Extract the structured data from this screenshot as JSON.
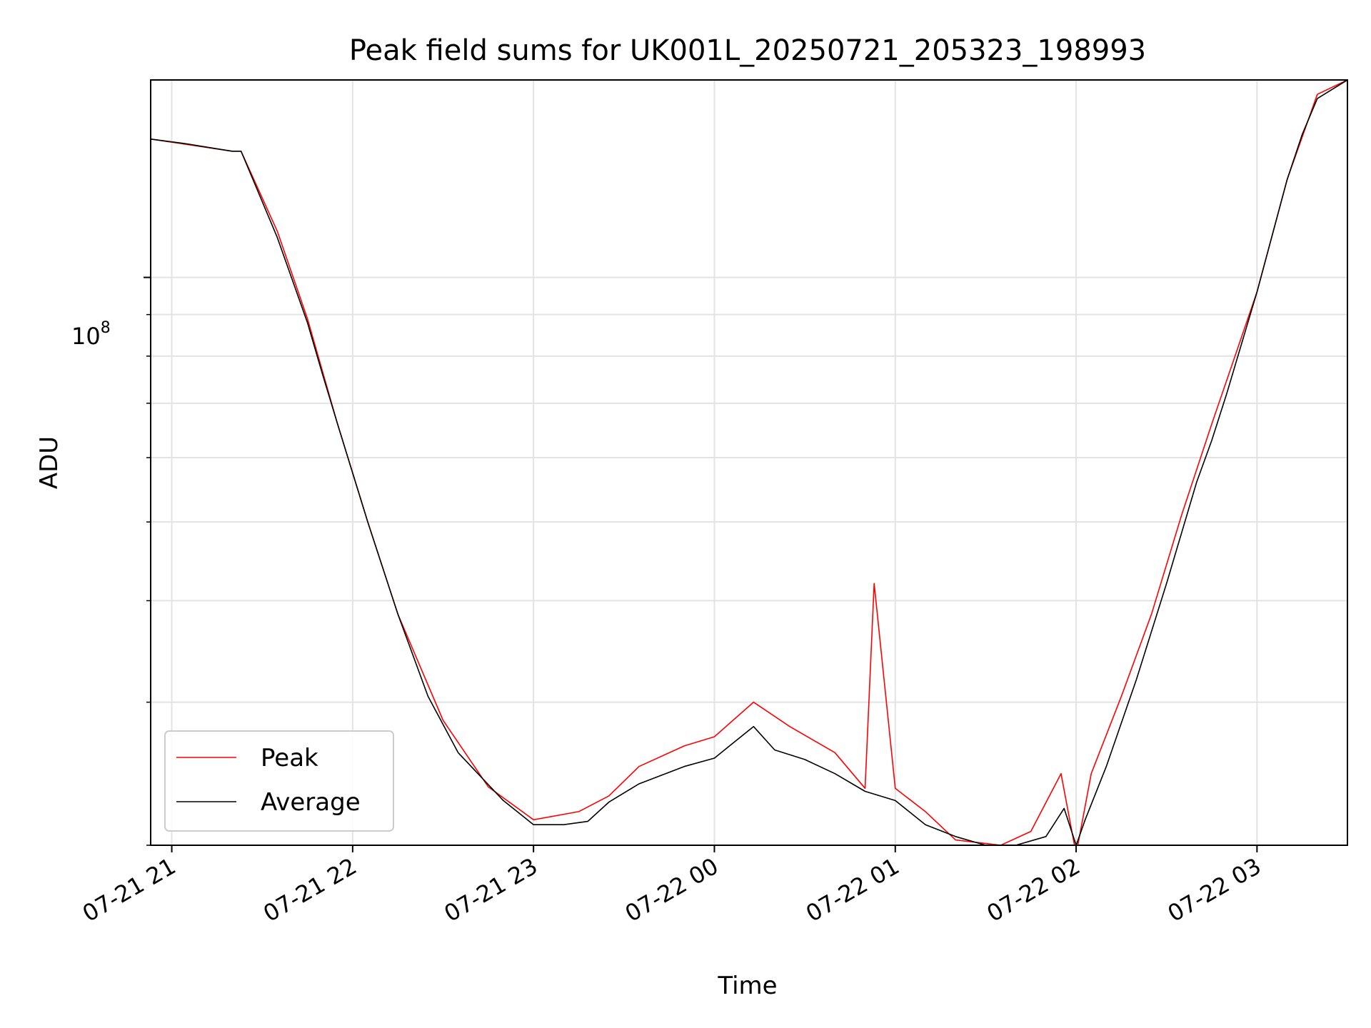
{
  "chart_data": {
    "type": "line",
    "title": "Peak field sums for UK001L_20250721_205323_198993",
    "xlabel": "Time",
    "ylabel": "ADU",
    "yscale": "log",
    "xlim": [
      "2025-07-21 20:53",
      "2025-07-22 03:30"
    ],
    "ylim": [
      20000000.0,
      175000000.0
    ],
    "x_ticks": [
      "07-21 21",
      "07-21 22",
      "07-21 23",
      "07-22 00",
      "07-22 01",
      "07-22 02",
      "07-22 03"
    ],
    "y_tick_base": "10",
    "y_tick_exp": "8",
    "y_tick_value": 100000000.0,
    "grid": true,
    "legend_position": "lower left",
    "series": [
      {
        "name": "Peak",
        "color": "#ff0000",
        "x": [
          "2025-07-21 20:53",
          "2025-07-21 21:20",
          "2025-07-21 21:23",
          "2025-07-21 21:35",
          "2025-07-21 21:45",
          "2025-07-21 21:55",
          "2025-07-21 22:05",
          "2025-07-21 22:15",
          "2025-07-21 22:30",
          "2025-07-21 22:45",
          "2025-07-21 23:00",
          "2025-07-21 23:15",
          "2025-07-21 23:25",
          "2025-07-21 23:35",
          "2025-07-21 23:50",
          "2025-07-22 00:00",
          "2025-07-22 00:13",
          "2025-07-22 00:25",
          "2025-07-22 00:40",
          "2025-07-22 00:50",
          "2025-07-22 00:53",
          "2025-07-22 01:00",
          "2025-07-22 01:10",
          "2025-07-22 01:20",
          "2025-07-22 01:35",
          "2025-07-22 01:45",
          "2025-07-22 01:55",
          "2025-07-22 02:00",
          "2025-07-22 02:05",
          "2025-07-22 02:15",
          "2025-07-22 02:25",
          "2025-07-22 02:35",
          "2025-07-22 02:45",
          "2025-07-22 03:00",
          "2025-07-22 03:10",
          "2025-07-22 03:20",
          "2025-07-22 03:30"
        ],
        "y": [
          148000000.0,
          143000000.0,
          143000000.0,
          114000000.0,
          89000000.0,
          66000000.0,
          50000000.0,
          38500000.0,
          28500000.0,
          23600000.0,
          21500000.0,
          22000000.0,
          23000000.0,
          25000000.0,
          26500000.0,
          27200000.0,
          30000000.0,
          28000000.0,
          26000000.0,
          23500000.0,
          42000000.0,
          23500000.0,
          22000000.0,
          20300000.0,
          20000000.0,
          20800000.0,
          24500000.0,
          19500000.0,
          24500000.0,
          30500000.0,
          38500000.0,
          51000000.0,
          66000000.0,
          96000000.0,
          132000000.0,
          168000000.0,
          175000000.0
        ]
      },
      {
        "name": "Average",
        "color": "#000000",
        "x": [
          "2025-07-21 20:53",
          "2025-07-21 21:05",
          "2025-07-21 21:15",
          "2025-07-21 21:20",
          "2025-07-21 21:23",
          "2025-07-21 21:35",
          "2025-07-21 21:45",
          "2025-07-21 21:50",
          "2025-07-21 21:55",
          "2025-07-21 22:05",
          "2025-07-21 22:15",
          "2025-07-21 22:25",
          "2025-07-21 22:35",
          "2025-07-21 22:50",
          "2025-07-21 23:00",
          "2025-07-21 23:10",
          "2025-07-21 23:18",
          "2025-07-21 23:25",
          "2025-07-21 23:35",
          "2025-07-21 23:50",
          "2025-07-22 00:00",
          "2025-07-22 00:05",
          "2025-07-22 00:13",
          "2025-07-22 00:20",
          "2025-07-22 00:30",
          "2025-07-22 00:40",
          "2025-07-22 00:50",
          "2025-07-22 01:00",
          "2025-07-22 01:10",
          "2025-07-22 01:20",
          "2025-07-22 01:30",
          "2025-07-22 01:40",
          "2025-07-22 01:50",
          "2025-07-22 01:56",
          "2025-07-22 02:00",
          "2025-07-22 02:03",
          "2025-07-22 02:10",
          "2025-07-22 02:20",
          "2025-07-22 02:30",
          "2025-07-22 02:40",
          "2025-07-22 02:45",
          "2025-07-22 02:50",
          "2025-07-22 03:00",
          "2025-07-22 03:10",
          "2025-07-22 03:15",
          "2025-07-22 03:20",
          "2025-07-22 03:30"
        ],
        "y": [
          148000000.0,
          146000000.0,
          144000000.0,
          143000000.0,
          143000000.0,
          112000000.0,
          88000000.0,
          76000000.0,
          66000000.0,
          50000000.0,
          38500000.0,
          30500000.0,
          26000000.0,
          22700000.0,
          21200000.0,
          21200000.0,
          21400000.0,
          22600000.0,
          23800000.0,
          25000000.0,
          25600000.0,
          26500000.0,
          28000000.0,
          26200000.0,
          25500000.0,
          24500000.0,
          23300000.0,
          22700000.0,
          21200000.0,
          20500000.0,
          20000000.0,
          20000000.0,
          20500000.0,
          22200000.0,
          20000000.0,
          21500000.0,
          25000000.0,
          32000000.0,
          42000000.0,
          56000000.0,
          63000000.0,
          72000000.0,
          96000000.0,
          132000000.0,
          150000000.0,
          166000000.0,
          175000000.0
        ]
      }
    ]
  }
}
